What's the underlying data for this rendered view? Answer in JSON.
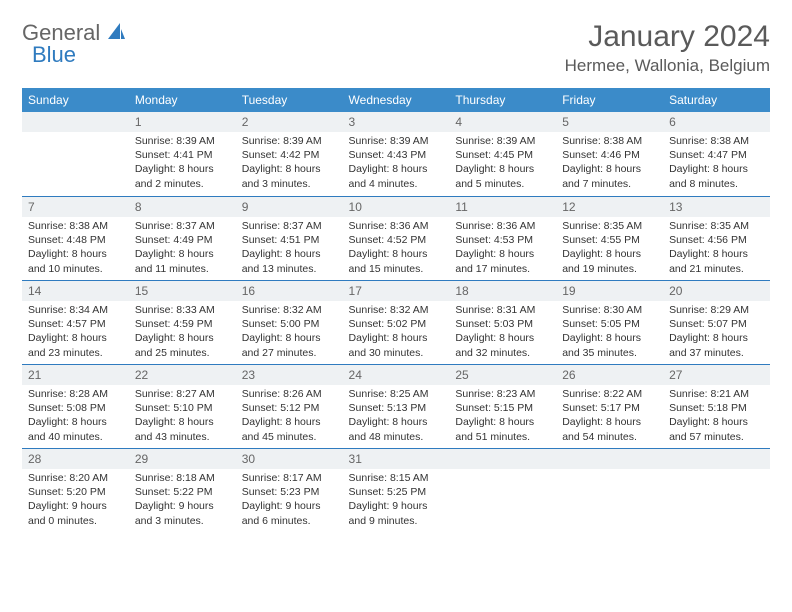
{
  "logo": {
    "text1": "General",
    "text2": "Blue"
  },
  "title": "January 2024",
  "location": "Hermee, Wallonia, Belgium",
  "header_color": "#3b8bc9",
  "row_divider_color": "#2f7bbf",
  "daynum_bg": "#eef1f3",
  "weekdays": [
    "Sunday",
    "Monday",
    "Tuesday",
    "Wednesday",
    "Thursday",
    "Friday",
    "Saturday"
  ],
  "weeks": [
    [
      {
        "n": "",
        "lines": [
          "",
          "",
          ""
        ]
      },
      {
        "n": "1",
        "lines": [
          "Sunrise: 8:39 AM",
          "Sunset: 4:41 PM",
          "Daylight: 8 hours and 2 minutes."
        ]
      },
      {
        "n": "2",
        "lines": [
          "Sunrise: 8:39 AM",
          "Sunset: 4:42 PM",
          "Daylight: 8 hours and 3 minutes."
        ]
      },
      {
        "n": "3",
        "lines": [
          "Sunrise: 8:39 AM",
          "Sunset: 4:43 PM",
          "Daylight: 8 hours and 4 minutes."
        ]
      },
      {
        "n": "4",
        "lines": [
          "Sunrise: 8:39 AM",
          "Sunset: 4:45 PM",
          "Daylight: 8 hours and 5 minutes."
        ]
      },
      {
        "n": "5",
        "lines": [
          "Sunrise: 8:38 AM",
          "Sunset: 4:46 PM",
          "Daylight: 8 hours and 7 minutes."
        ]
      },
      {
        "n": "6",
        "lines": [
          "Sunrise: 8:38 AM",
          "Sunset: 4:47 PM",
          "Daylight: 8 hours and 8 minutes."
        ]
      }
    ],
    [
      {
        "n": "7",
        "lines": [
          "Sunrise: 8:38 AM",
          "Sunset: 4:48 PM",
          "Daylight: 8 hours and 10 minutes."
        ]
      },
      {
        "n": "8",
        "lines": [
          "Sunrise: 8:37 AM",
          "Sunset: 4:49 PM",
          "Daylight: 8 hours and 11 minutes."
        ]
      },
      {
        "n": "9",
        "lines": [
          "Sunrise: 8:37 AM",
          "Sunset: 4:51 PM",
          "Daylight: 8 hours and 13 minutes."
        ]
      },
      {
        "n": "10",
        "lines": [
          "Sunrise: 8:36 AM",
          "Sunset: 4:52 PM",
          "Daylight: 8 hours and 15 minutes."
        ]
      },
      {
        "n": "11",
        "lines": [
          "Sunrise: 8:36 AM",
          "Sunset: 4:53 PM",
          "Daylight: 8 hours and 17 minutes."
        ]
      },
      {
        "n": "12",
        "lines": [
          "Sunrise: 8:35 AM",
          "Sunset: 4:55 PM",
          "Daylight: 8 hours and 19 minutes."
        ]
      },
      {
        "n": "13",
        "lines": [
          "Sunrise: 8:35 AM",
          "Sunset: 4:56 PM",
          "Daylight: 8 hours and 21 minutes."
        ]
      }
    ],
    [
      {
        "n": "14",
        "lines": [
          "Sunrise: 8:34 AM",
          "Sunset: 4:57 PM",
          "Daylight: 8 hours and 23 minutes."
        ]
      },
      {
        "n": "15",
        "lines": [
          "Sunrise: 8:33 AM",
          "Sunset: 4:59 PM",
          "Daylight: 8 hours and 25 minutes."
        ]
      },
      {
        "n": "16",
        "lines": [
          "Sunrise: 8:32 AM",
          "Sunset: 5:00 PM",
          "Daylight: 8 hours and 27 minutes."
        ]
      },
      {
        "n": "17",
        "lines": [
          "Sunrise: 8:32 AM",
          "Sunset: 5:02 PM",
          "Daylight: 8 hours and 30 minutes."
        ]
      },
      {
        "n": "18",
        "lines": [
          "Sunrise: 8:31 AM",
          "Sunset: 5:03 PM",
          "Daylight: 8 hours and 32 minutes."
        ]
      },
      {
        "n": "19",
        "lines": [
          "Sunrise: 8:30 AM",
          "Sunset: 5:05 PM",
          "Daylight: 8 hours and 35 minutes."
        ]
      },
      {
        "n": "20",
        "lines": [
          "Sunrise: 8:29 AM",
          "Sunset: 5:07 PM",
          "Daylight: 8 hours and 37 minutes."
        ]
      }
    ],
    [
      {
        "n": "21",
        "lines": [
          "Sunrise: 8:28 AM",
          "Sunset: 5:08 PM",
          "Daylight: 8 hours and 40 minutes."
        ]
      },
      {
        "n": "22",
        "lines": [
          "Sunrise: 8:27 AM",
          "Sunset: 5:10 PM",
          "Daylight: 8 hours and 43 minutes."
        ]
      },
      {
        "n": "23",
        "lines": [
          "Sunrise: 8:26 AM",
          "Sunset: 5:12 PM",
          "Daylight: 8 hours and 45 minutes."
        ]
      },
      {
        "n": "24",
        "lines": [
          "Sunrise: 8:25 AM",
          "Sunset: 5:13 PM",
          "Daylight: 8 hours and 48 minutes."
        ]
      },
      {
        "n": "25",
        "lines": [
          "Sunrise: 8:23 AM",
          "Sunset: 5:15 PM",
          "Daylight: 8 hours and 51 minutes."
        ]
      },
      {
        "n": "26",
        "lines": [
          "Sunrise: 8:22 AM",
          "Sunset: 5:17 PM",
          "Daylight: 8 hours and 54 minutes."
        ]
      },
      {
        "n": "27",
        "lines": [
          "Sunrise: 8:21 AM",
          "Sunset: 5:18 PM",
          "Daylight: 8 hours and 57 minutes."
        ]
      }
    ],
    [
      {
        "n": "28",
        "lines": [
          "Sunrise: 8:20 AM",
          "Sunset: 5:20 PM",
          "Daylight: 9 hours and 0 minutes."
        ]
      },
      {
        "n": "29",
        "lines": [
          "Sunrise: 8:18 AM",
          "Sunset: 5:22 PM",
          "Daylight: 9 hours and 3 minutes."
        ]
      },
      {
        "n": "30",
        "lines": [
          "Sunrise: 8:17 AM",
          "Sunset: 5:23 PM",
          "Daylight: 9 hours and 6 minutes."
        ]
      },
      {
        "n": "31",
        "lines": [
          "Sunrise: 8:15 AM",
          "Sunset: 5:25 PM",
          "Daylight: 9 hours and 9 minutes."
        ]
      },
      {
        "n": "",
        "lines": [
          "",
          "",
          ""
        ]
      },
      {
        "n": "",
        "lines": [
          "",
          "",
          ""
        ]
      },
      {
        "n": "",
        "lines": [
          "",
          "",
          ""
        ]
      }
    ]
  ]
}
